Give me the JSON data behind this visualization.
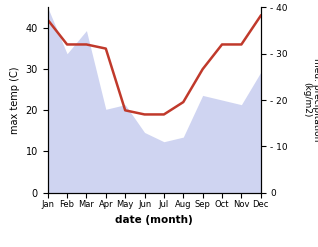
{
  "months": [
    "Jan",
    "Feb",
    "Mar",
    "Apr",
    "May",
    "Jun",
    "Jul",
    "Aug",
    "Sep",
    "Oct",
    "Nov",
    "Dec"
  ],
  "temperature": [
    42,
    36,
    36,
    35,
    20,
    19,
    19,
    22,
    30,
    36,
    36,
    43
  ],
  "precipitation": [
    40,
    30,
    35,
    18,
    19,
    13,
    11,
    12,
    21,
    20,
    19,
    26
  ],
  "temp_color": "#c0392b",
  "precip_fill_color": "#b0b8e8",
  "left_ylabel": "max temp (C)",
  "right_ylabel": "med. precipitation\n(kg/m2)",
  "xlabel": "date (month)",
  "ylim_left": [
    0,
    45
  ],
  "ylim_right": [
    0,
    40
  ],
  "yticks_left": [
    0,
    10,
    20,
    30,
    40
  ],
  "yticks_right": [
    0,
    10,
    20,
    30,
    40
  ],
  "bg_color": "#ffffff",
  "temp_linewidth": 1.8,
  "figsize": [
    3.18,
    2.47
  ],
  "dpi": 100
}
